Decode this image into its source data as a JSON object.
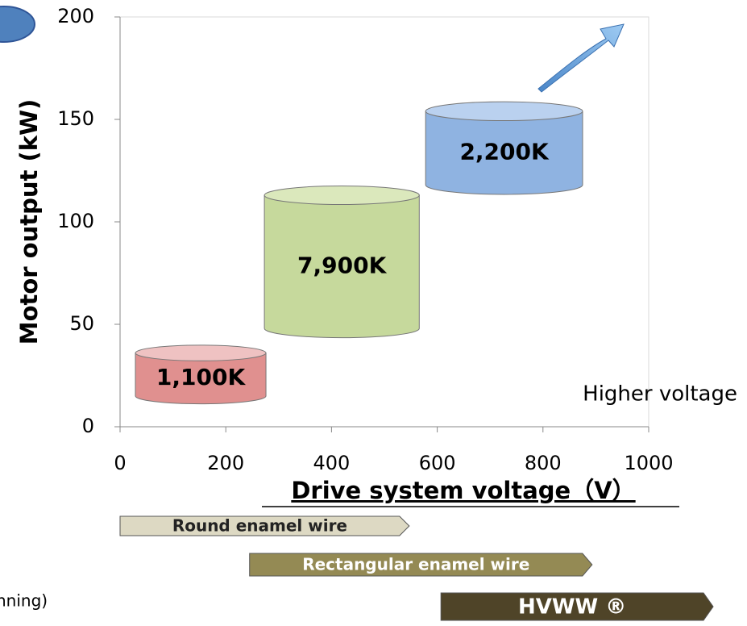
{
  "chart_data": {
    "type": "cylinder",
    "xlabel": "Drive system voltage（V）",
    "ylabel": "Motor output (kW)",
    "xlim": [
      0,
      1000
    ],
    "xticks": [
      0,
      200,
      400,
      600,
      800,
      1000
    ],
    "ylim": [
      0,
      200
    ],
    "yticks": [
      0,
      50,
      100,
      150,
      200
    ],
    "cylinders": [
      {
        "label": "1,100K",
        "x": [
          29,
          276
        ],
        "y": [
          15,
          36
        ],
        "color": "#e0908f",
        "top_color": "#efc2c2"
      },
      {
        "label": "7,900K",
        "x": [
          273,
          566
        ],
        "y": [
          48,
          113
        ],
        "color": "#c6d99c",
        "top_color": "#dbe8bc"
      },
      {
        "label": "2,200K",
        "x": [
          578,
          875
        ],
        "y": [
          118,
          154
        ],
        "color": "#8fb3e1",
        "top_color": "#bad1ef"
      }
    ],
    "annotation": "Higher voltage",
    "ranges": [
      {
        "label": "Round enamel wire",
        "x": [
          0,
          547
        ],
        "color": "#ddd9c3",
        "text_color": "#222222"
      },
      {
        "label": "Rectangular enamel wire",
        "x": [
          245,
          893
        ],
        "color": "#948a54",
        "text_color": "#ffffff"
      },
      {
        "label": "HVWW ®",
        "x": [
          607,
          1122
        ],
        "color": "#4f4428",
        "text_color": "#ffffff"
      }
    ],
    "fragment": "nning)"
  }
}
